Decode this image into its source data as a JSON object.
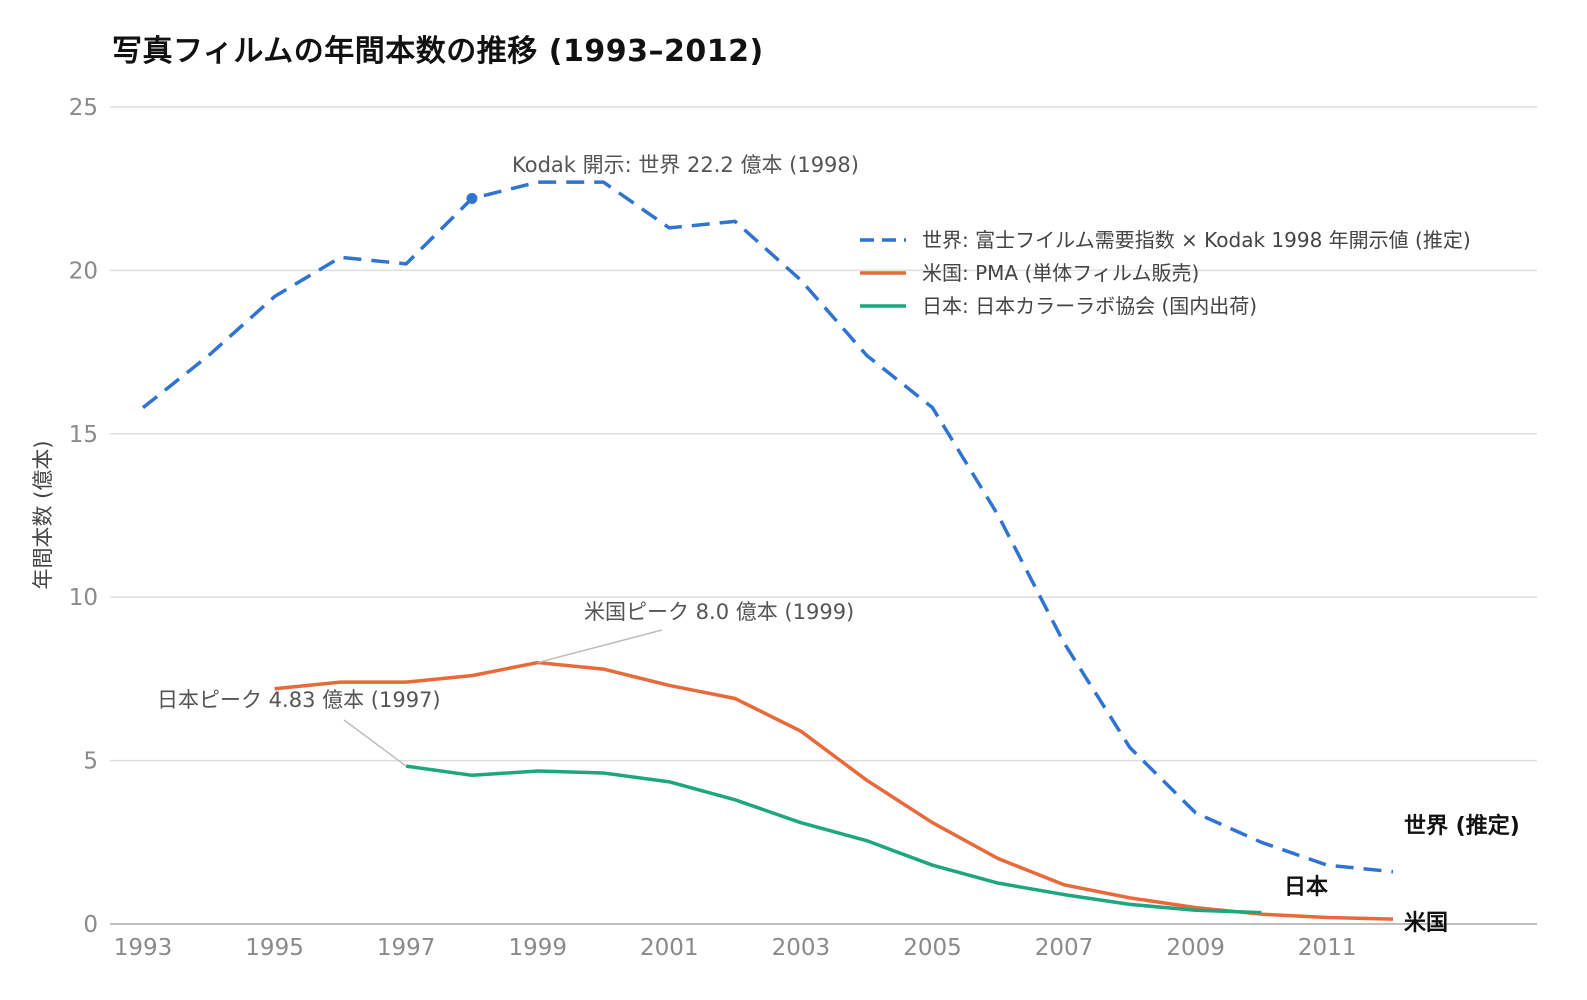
{
  "chart_data": {
    "type": "line",
    "title": "写真フィルムの年間本数の推移 (1993–2012)",
    "xlabel": "",
    "ylabel": "年間本数 (億本)",
    "xlim": [
      1993,
      2012
    ],
    "ylim": [
      0,
      25
    ],
    "x_ticks": [
      1993,
      1995,
      1997,
      1999,
      2001,
      2003,
      2005,
      2007,
      2009,
      2011
    ],
    "y_ticks": [
      0,
      5,
      10,
      15,
      20,
      25
    ],
    "grid": "horizontal",
    "legend_position": "top-right",
    "series": [
      {
        "key": "world",
        "name": "世界: 富士フイルム需要指数 × Kodak 1998 年開示値 (推定)",
        "end_label": "世界 (推定)",
        "color": "#2f74d0",
        "style": "dashed",
        "x": [
          1993,
          1994,
          1995,
          1996,
          1997,
          1998,
          1999,
          2000,
          2001,
          2002,
          2003,
          2004,
          2005,
          2006,
          2007,
          2008,
          2009,
          2010,
          2011,
          2012
        ],
        "values": [
          15.8,
          17.4,
          19.2,
          20.4,
          20.2,
          22.2,
          22.7,
          22.7,
          21.3,
          21.5,
          19.7,
          17.4,
          15.8,
          12.5,
          8.6,
          5.4,
          3.4,
          2.5,
          1.8,
          1.6
        ]
      },
      {
        "key": "us",
        "name": "米国: PMA (単体フィルム販売)",
        "end_label": "米国",
        "color": "#e8693a",
        "style": "solid",
        "x": [
          1995,
          1996,
          1997,
          1998,
          1999,
          2000,
          2001,
          2002,
          2003,
          2004,
          2005,
          2006,
          2007,
          2008,
          2009,
          2010,
          2011,
          2012
        ],
        "values": [
          7.2,
          7.4,
          7.4,
          7.6,
          8.0,
          7.8,
          7.3,
          6.9,
          5.9,
          4.4,
          3.1,
          2.0,
          1.2,
          0.8,
          0.5,
          0.3,
          0.2,
          0.15
        ]
      },
      {
        "key": "japan",
        "name": "日本: 日本カラーラボ協会 (国内出荷)",
        "end_label": "日本",
        "color": "#1ea67f",
        "style": "solid",
        "x": [
          1997,
          1998,
          1999,
          2000,
          2001,
          2002,
          2003,
          2004,
          2005,
          2006,
          2007,
          2008,
          2009,
          2010
        ],
        "values": [
          4.83,
          4.55,
          4.68,
          4.62,
          4.35,
          3.8,
          3.1,
          2.55,
          1.8,
          1.25,
          0.9,
          0.6,
          0.42,
          0.35
        ]
      }
    ],
    "annotations": [
      {
        "text": "Kodak 開示: 世界 22.2 億本 (1998)",
        "series": "world",
        "x": 1998,
        "y": 22.2
      },
      {
        "text": "米国ピーク 8.0 億本 (1999)",
        "series": "us",
        "x": 1999,
        "y": 8.0
      },
      {
        "text": "日本ピーク 4.83 億本 (1997)",
        "series": "japan",
        "x": 1997,
        "y": 4.83
      }
    ]
  }
}
